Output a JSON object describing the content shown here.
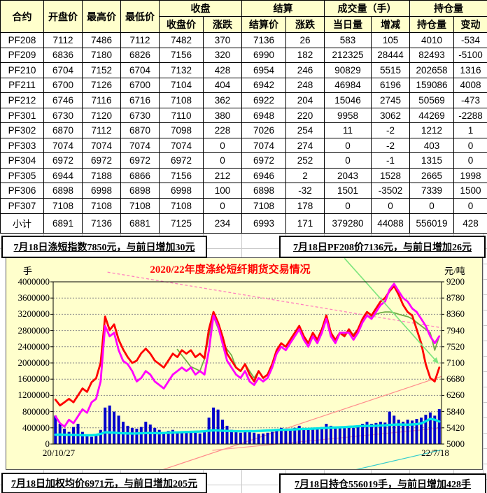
{
  "table": {
    "col_groups": [
      {
        "label": "合约"
      },
      {
        "label": "开盘价"
      },
      {
        "label": "最高价"
      },
      {
        "label": "最低价"
      },
      {
        "label": "收盘",
        "children": [
          "收盘价",
          "涨跌"
        ]
      },
      {
        "label": "结算",
        "children": [
          "结算价",
          "涨跌"
        ]
      },
      {
        "label": "成交量（手）",
        "children": [
          "当日量",
          "增减"
        ]
      },
      {
        "label": "持仓量",
        "children": [
          "持仓量",
          "变动"
        ]
      }
    ],
    "rows": [
      [
        "PF208",
        7112,
        7486,
        7112,
        7482,
        370,
        7136,
        26,
        583,
        105,
        4010,
        -534
      ],
      [
        "PF209",
        6836,
        7180,
        6826,
        7156,
        320,
        6990,
        182,
        212325,
        28444,
        82493,
        -5100
      ],
      [
        "PF210",
        6704,
        7152,
        6704,
        7132,
        428,
        6954,
        246,
        90829,
        5515,
        202658,
        1316
      ],
      [
        "PF211",
        6700,
        7126,
        6700,
        7104,
        404,
        6942,
        248,
        46984,
        6196,
        159086,
        4008
      ],
      [
        "PF212",
        6746,
        7116,
        6716,
        7108,
        362,
        6922,
        204,
        15046,
        2745,
        50569,
        -473
      ],
      [
        "PF301",
        6730,
        7120,
        6730,
        7110,
        380,
        6948,
        220,
        9958,
        3062,
        44269,
        -2288
      ],
      [
        "PF302",
        6870,
        7112,
        6870,
        7098,
        228,
        7026,
        254,
        11,
        -2,
        1212,
        1
      ],
      [
        "PF303",
        7074,
        7074,
        7074,
        7074,
        0,
        7074,
        274,
        0,
        -2,
        403,
        0
      ],
      [
        "PF304",
        6972,
        6972,
        6972,
        6972,
        0,
        6972,
        252,
        0,
        -1,
        1315,
        0
      ],
      [
        "PF305",
        6944,
        7188,
        6866,
        7156,
        212,
        6946,
        2,
        2043,
        1528,
        2665,
        1998
      ],
      [
        "PF306",
        6898,
        6998,
        6898,
        6998,
        100,
        6898,
        -32,
        1501,
        -3502,
        7339,
        1500
      ],
      [
        "PF307",
        7108,
        7108,
        7108,
        7108,
        0,
        7108,
        178,
        0,
        0,
        0,
        0
      ],
      [
        "小计",
        6891,
        7136,
        6881,
        7125,
        234,
        6993,
        171,
        379280,
        44088,
        556019,
        428
      ]
    ]
  },
  "status_boxes": {
    "top_left": "7月18日涤短指数7850元，与前日增加30元",
    "top_right": "7月18日PF208价7136元，与前日增加26元",
    "bottom_left": "7月18日加权均价6971元，与前日增加205元",
    "bottom_right": "7月18日持仓556019手，与前日增加428手"
  },
  "chart_data": {
    "type": "line",
    "title": "2020/22年度涤纶短纤期货交易情况",
    "title_color": "#FF0000",
    "background": "#FFFFCC",
    "grid": "dashed-horizontal",
    "legend": "none",
    "x_axis": {
      "start_label": "20/10/27",
      "end_label": "22/7/18"
    },
    "left_axis": {
      "label": "手",
      "range": [
        0,
        4000000
      ],
      "ticks": [
        0,
        400000,
        800000,
        1200000,
        1600000,
        2000000,
        2400000,
        2800000,
        3200000,
        3600000,
        4000000
      ]
    },
    "right_axis": {
      "label": "元/吨",
      "range": [
        5000,
        9200
      ],
      "ticks": [
        5000,
        5420,
        5840,
        6260,
        6680,
        7100,
        7520,
        7940,
        8360,
        8780,
        9200
      ]
    },
    "series": {
      "volume_bars": {
        "name": "volume-bars",
        "type": "bar",
        "axis": "left",
        "color": "#0000CC",
        "values": [
          700000,
          500000,
          380000,
          300000,
          420000,
          500000,
          300000,
          220000,
          180000,
          200000,
          350000,
          900000,
          950000,
          800000,
          700000,
          550000,
          450000,
          400000,
          380000,
          420000,
          550000,
          480000,
          400000,
          350000,
          300000,
          320000,
          350000,
          300000,
          280000,
          320000,
          300000,
          280000,
          260000,
          300000,
          650000,
          900000,
          850000,
          600000,
          450000,
          350000,
          300000,
          280000,
          300000,
          320000,
          280000,
          250000,
          260000,
          280000,
          300000,
          350000,
          400000,
          380000,
          360000,
          400000,
          450000,
          380000,
          350000,
          400000,
          380000,
          420000,
          500000,
          450000,
          400000,
          420000,
          400000,
          430000,
          400000,
          450000,
          500000,
          550000,
          500000,
          520000,
          550000,
          530000,
          800000,
          700000,
          600000,
          550000,
          600000,
          580000,
          620000,
          650000,
          720000,
          780000,
          700000,
          860000
        ]
      },
      "cyan_line": {
        "name": "cyan-line",
        "type": "line",
        "axis": "left",
        "color": "#00E6E6",
        "width": 3.4,
        "values": [
          230000,
          235000,
          230000,
          228000,
          225000,
          222000,
          218000,
          215000,
          218000,
          225000,
          250000,
          290000,
          285000,
          280000,
          270000,
          265000,
          262000,
          260000,
          262000,
          268000,
          270000,
          272000,
          270000,
          268000,
          272000,
          278000,
          282000,
          288000,
          292000,
          296000,
          300000,
          305000,
          308000,
          315000,
          330000,
          340000,
          335000,
          330000,
          325000,
          320000,
          318000,
          315000,
          318000,
          320000,
          318000,
          322000,
          328000,
          332000,
          338000,
          345000,
          350000,
          352000,
          355000,
          360000,
          368000,
          372000,
          375000,
          380000,
          385000,
          392000,
          400000,
          405000,
          408000,
          412000,
          418000,
          425000,
          430000,
          438000,
          445000,
          450000,
          448000,
          452000,
          458000,
          462000,
          470000,
          478000,
          482000,
          480000,
          478000,
          482000,
          490000,
          510000,
          560000,
          620000,
          600000,
          556019
        ]
      },
      "green_line": {
        "name": "green-line",
        "type": "line",
        "axis": "right",
        "color": "#70AD47",
        "width": 1.8,
        "values": [
          null,
          null,
          null,
          null,
          null,
          null,
          null,
          null,
          null,
          null,
          null,
          null,
          null,
          null,
          null,
          null,
          null,
          null,
          null,
          null,
          null,
          null,
          null,
          null,
          null,
          null,
          null,
          7450,
          7300,
          7150,
          7000,
          6950,
          6890,
          7200,
          7800,
          8300,
          8000,
          7610,
          7450,
          7300,
          6980,
          6890,
          7070,
          6890,
          6710,
          6890,
          6710,
          6800,
          7070,
          7430,
          7610,
          7520,
          7700,
          7880,
          8060,
          7790,
          7610,
          7880,
          7700,
          7970,
          8240,
          7880,
          7700,
          7880,
          7840,
          7920,
          7840,
          7970,
          8150,
          8330,
          8280,
          8360,
          8400,
          8420,
          8420,
          8400,
          8360,
          8330,
          8300,
          8240,
          8150,
          8060,
          7970,
          7880,
          7430,
          7790
        ]
      },
      "red_line": {
        "name": "red-line",
        "type": "line",
        "axis": "right",
        "color": "#FF0000",
        "width": 2.8,
        "values": [
          6150,
          6000,
          6080,
          6170,
          6080,
          6260,
          6440,
          6350,
          6600,
          6700,
          7100,
          8300,
          7950,
          8100,
          7700,
          7450,
          7250,
          7100,
          7160,
          7350,
          7470,
          7340,
          7160,
          7070,
          6980,
          7160,
          7340,
          7250,
          7430,
          7340,
          7430,
          7250,
          7340,
          7220,
          7970,
          8420,
          8150,
          7790,
          7340,
          7160,
          6980,
          6890,
          7070,
          6800,
          6620,
          6890,
          6710,
          6800,
          7070,
          7430,
          7610,
          7520,
          7700,
          7880,
          8060,
          7790,
          7610,
          7880,
          7700,
          7970,
          8330,
          7880,
          7700,
          7880,
          7790,
          7970,
          7790,
          7970,
          8240,
          8420,
          8330,
          8510,
          8690,
          8780,
          8960,
          9090,
          8870,
          8600,
          8420,
          8330,
          7970,
          7610,
          7070,
          6710,
          6620,
          6980
        ]
      },
      "magenta_line": {
        "name": "magenta-line",
        "type": "line",
        "axis": "right",
        "color": "#FF00FF",
        "width": 2.8,
        "values": [
          5720,
          5540,
          5450,
          5630,
          5540,
          5720,
          5900,
          5810,
          6080,
          6170,
          6620,
          8060,
          7790,
          7880,
          7430,
          7150,
          7070,
          6890,
          6620,
          6710,
          6890,
          6800,
          6620,
          6530,
          6440,
          6620,
          6800,
          6890,
          6980,
          6890,
          6980,
          6800,
          6890,
          6800,
          7430,
          8330,
          8060,
          7610,
          7160,
          6980,
          6800,
          6710,
          6890,
          6620,
          6530,
          6710,
          6620,
          6710,
          6980,
          7340,
          7520,
          7430,
          7610,
          7790,
          7970,
          7700,
          7520,
          7790,
          7610,
          7880,
          8240,
          7790,
          7610,
          7880,
          7880,
          7880,
          7700,
          7880,
          8150,
          8330,
          8240,
          8420,
          8600,
          8690,
          9000,
          9150,
          8960,
          8780,
          8690,
          8510,
          8420,
          8240,
          8060,
          7790,
          7610,
          7790
        ]
      }
    },
    "trend_lines": [
      {
        "name": "pink-dashed-trend",
        "color": "#FF7FBF",
        "dash": "4,3",
        "width": 1.3,
        "x": [
          0.14,
          1.0
        ],
        "v": [
          9450,
          8010
        ]
      },
      {
        "name": "salmon-trend-steep",
        "color": "#FF8C8C",
        "width": 1.2,
        "x": [
          0.28,
          1.0
        ],
        "v": [
          4330,
          6750
        ]
      },
      {
        "name": "salmon-trend-shallow",
        "color": "#FF9999",
        "width": 1.2,
        "x": [
          0.41,
          1.0
        ],
        "v": [
          4837,
          5416
        ]
      },
      {
        "name": "cyan-thin-trend",
        "color": "#33CCCC",
        "width": 1.2,
        "x": [
          0.72,
          1.0
        ],
        "v": [
          4200,
          4850
        ]
      },
      {
        "name": "green-arrow-trend",
        "color": "#7FE57F",
        "width": 1.7,
        "arrow": true,
        "x": [
          0.75,
          0.988
        ],
        "v": [
          9810,
          7130
        ]
      }
    ]
  }
}
